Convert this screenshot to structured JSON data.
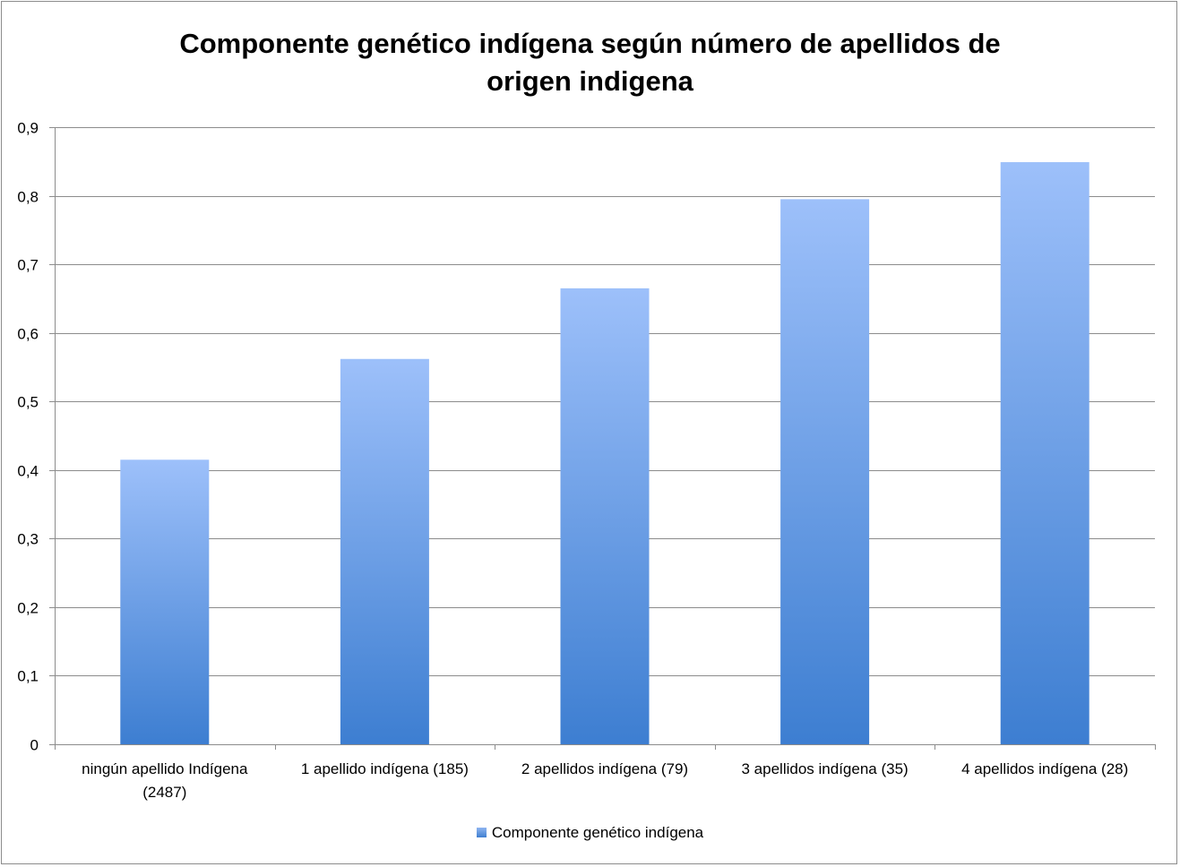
{
  "chart_data": {
    "type": "bar",
    "title_lines": [
      "Componente genético indígena según número de apellidos de",
      "origen indigena"
    ],
    "categories": [
      [
        "ningún apellido Indígena",
        "(2487)"
      ],
      [
        "1 apellido indígena (185)"
      ],
      [
        "2 apellidos indígena (79)"
      ],
      [
        "3 apellidos indígena (35)"
      ],
      [
        "4 apellidos indígena (28)"
      ]
    ],
    "series": [
      {
        "name": "Componente genético indígena",
        "values": [
          0.415,
          0.562,
          0.665,
          0.795,
          0.849
        ]
      }
    ],
    "ylim": [
      0,
      0.9
    ],
    "yticks": [
      "0",
      "0,1",
      "0,2",
      "0,3",
      "0,4",
      "0,5",
      "0,6",
      "0,7",
      "0,8",
      "0,9"
    ],
    "grid": true,
    "legend_position": "bottom",
    "colors": {
      "bar_top": "#9dc0fa",
      "bar_bottom": "#3d7ed1",
      "grid": "#8c8c8c"
    }
  }
}
